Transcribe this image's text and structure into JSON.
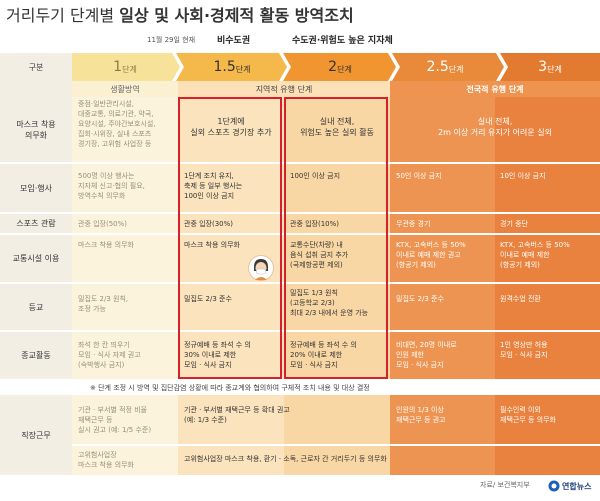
{
  "title_plain": "거리두기 단계별 ",
  "title_bold": "일상 및 사회·경제적 활동 방역조치",
  "date_note": "11월 29일 현재",
  "region_metro": "비수도권",
  "region_other": "수도권·위험도 높은 지자체",
  "col_label": "구분",
  "stages": [
    {
      "num": "1",
      "unit": "단계"
    },
    {
      "num": "1.5",
      "unit": "단계"
    },
    {
      "num": "2",
      "unit": "단계"
    },
    {
      "num": "2.5",
      "unit": "단계"
    },
    {
      "num": "3",
      "unit": "단계"
    }
  ],
  "groups": {
    "g1": "생활방역",
    "g2": "지역적 유행 단계",
    "g3": "전국적 유행 단계"
  },
  "rows": {
    "mask": {
      "label": "마스크 착용\n의무화",
      "c1": "중점·일반관리시설,\n대중교통, 의료기관, 약국,\n요양시설, 주야간보호시설,\n집회·시위장, 실내 스포츠\n경기장, 고위험 사업장 등",
      "c2": "1단계에\n실외 스포츠 경기장 추가",
      "c3": "실내 전체,\n위험도 높은 실외 활동",
      "c45": "실내 전체,\n2m 이상 거리 유지가 어려운 실외"
    },
    "gather": {
      "label": "모임·행사",
      "c1": "500명 이상 행사는\n지자체 신고·협의 필요,\n방역수칙 의무화",
      "c2": "1단계 조치 유지,\n축제 등 일부 행사는\n100인 이상 금지",
      "c3": "100인 이상 금지",
      "c4": "50인 이상 금지",
      "c5": "10인 이상 금지"
    },
    "sports": {
      "label": "스포츠 관람",
      "c1": "관중 입장(50%)",
      "c2": "관중 입장(30%)",
      "c3": "관중 입장(10%)",
      "c4": "무관중 경기",
      "c5": "경기 중단"
    },
    "transit": {
      "label": "교통시설 이용",
      "c1": "마스크 착용 의무화",
      "c2": "마스크 착용 의무화",
      "c3": "교통수단(차량) 내\n음식 섭취 금지 추가\n(국제항공편 제외)",
      "c4": "KTX, 고속버스 등 50%\n이내로 예매 제한 권고\n(항공기 제외)",
      "c5": "KTX, 고속버스 등 50%\n이내로 예매 제한\n(항공기 제외)"
    },
    "school": {
      "label": "등교",
      "c1": "밀집도 2/3 원칙,\n조정 가능",
      "c2": "밀집도 2/3 준수",
      "c3": "밀집도 1/3 원칙\n(고등학교 2/3)\n최대 2/3 내에서 운영 가능",
      "c4": "밀집도 2/3 준수",
      "c5": "원격수업 전환"
    },
    "religion": {
      "label": "종교활동",
      "c1": "좌석 한 칸 띄우기\n모임 · 식사 자제 권고\n(숙박행사 금지)",
      "c2": "정규예배 등 좌석 수 의\n30% 이내로 제한\n모임 · 식사 금지",
      "c3": "정규예배 등 좌석 수 의\n20% 이내로 제한\n모임 · 식사 금지",
      "c4": "비대면, 20명 이내로\n인원 제한\n모임 · 식사 금지",
      "c5": "1인 영상만 허용\n모임 · 식사 금지"
    },
    "work": {
      "label": "직장근무",
      "c1a": "기관 · 부서별 적정 비율\n재택근무 등\n실시 권고 (예: 1/5 수준)",
      "c2a": "기관 · 부서별 재택근무 등 확대 권고\n(예: 1/3 수준)",
      "c4a": "인원의 1/3 이상\n재택근무 등 권고",
      "c5a": "필수인력 이외\n재택근무 등 의무화",
      "c1b": "고위험사업장\n마스크 착용 의무화",
      "c2b": "고위험사업장 마스크 착용, 환기 · 소독, 근로자 간 거리두기 등 의무화"
    }
  },
  "footnote": "※ 단계 조정 시 방역 및 집단감염 상황에 따라 종교계와 협의하여 구체적 조치 내용 및 대상 결정",
  "source": "자료/ 보건복지부",
  "logo_text": "연합뉴스",
  "colors": {
    "stage1": "#f7e29a",
    "stage15": "#f5b84a",
    "stage2": "#f0952f",
    "stage25": "#e88a3a",
    "stage3": "#e27a2f",
    "red_outline": "#d6202a"
  }
}
